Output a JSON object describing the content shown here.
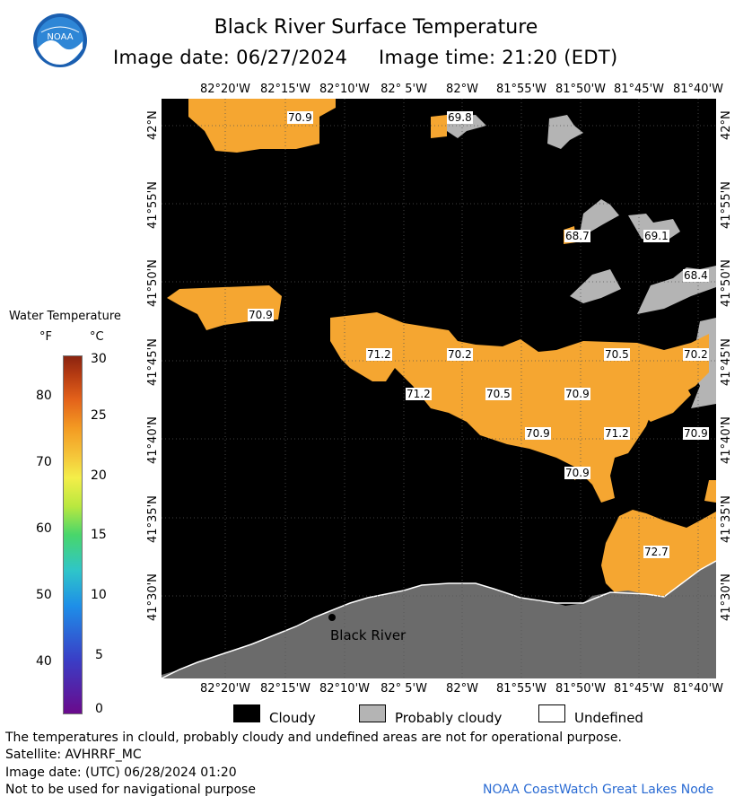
{
  "header": {
    "title": "Black River Surface Temperature",
    "subtitle": "Image date: 06/27/2024     Image time: 21:20 (EDT)",
    "logo_text": "NOAA"
  },
  "axes": {
    "longitude_ticks": [
      "82°20'W",
      "82°15'W",
      "82°10'W",
      "82° 5'W",
      "82°W",
      "81°55'W",
      "81°50'W",
      "81°45'W",
      "81°40'W"
    ],
    "latitude_ticks": [
      "42°N",
      "41°55'N",
      "41°50'N",
      "41°45'N",
      "41°40'N",
      "41°35'N",
      "41°30'N"
    ]
  },
  "map": {
    "place_label": "Black River",
    "temperature_labels": [
      "70.9",
      "69.8",
      "68.7",
      "69.1",
      "68.4",
      "70.9",
      "71.2",
      "70.2",
      "70.5",
      "70.2",
      "71.2",
      "70.5",
      "70.9",
      "70.9",
      "71.2",
      "70.9",
      "70.9",
      "72.7"
    ],
    "colors": {
      "cloud": "#000000",
      "land": "#6b6b6b",
      "probably_cloudy": "#b4b4b4",
      "water_warm": "#f5a631",
      "water_warmer": "#f39a22"
    }
  },
  "colorbar": {
    "title": "Water Temperature",
    "unit_f": "°F",
    "unit_c": "°C",
    "f_ticks": [
      "80",
      "70",
      "60",
      "50",
      "40"
    ],
    "c_ticks": [
      "30",
      "25",
      "20",
      "15",
      "10",
      "5",
      "0"
    ]
  },
  "legend": {
    "cloudy": "Cloudy",
    "probably_cloudy": "Probably cloudy",
    "undefined": "Undefined"
  },
  "footer": {
    "disclaimer": "The temperatures in clould, probably cloudy and undefined areas are not for operational purpose.",
    "satellite": "Satellite: AVHRRF_MC",
    "image_date_utc": "Image date: (UTC) 06/28/2024  01:20",
    "navigation_warning": "Not to be used for navigational purpose",
    "credit": "NOAA CoastWatch Great Lakes Node"
  }
}
